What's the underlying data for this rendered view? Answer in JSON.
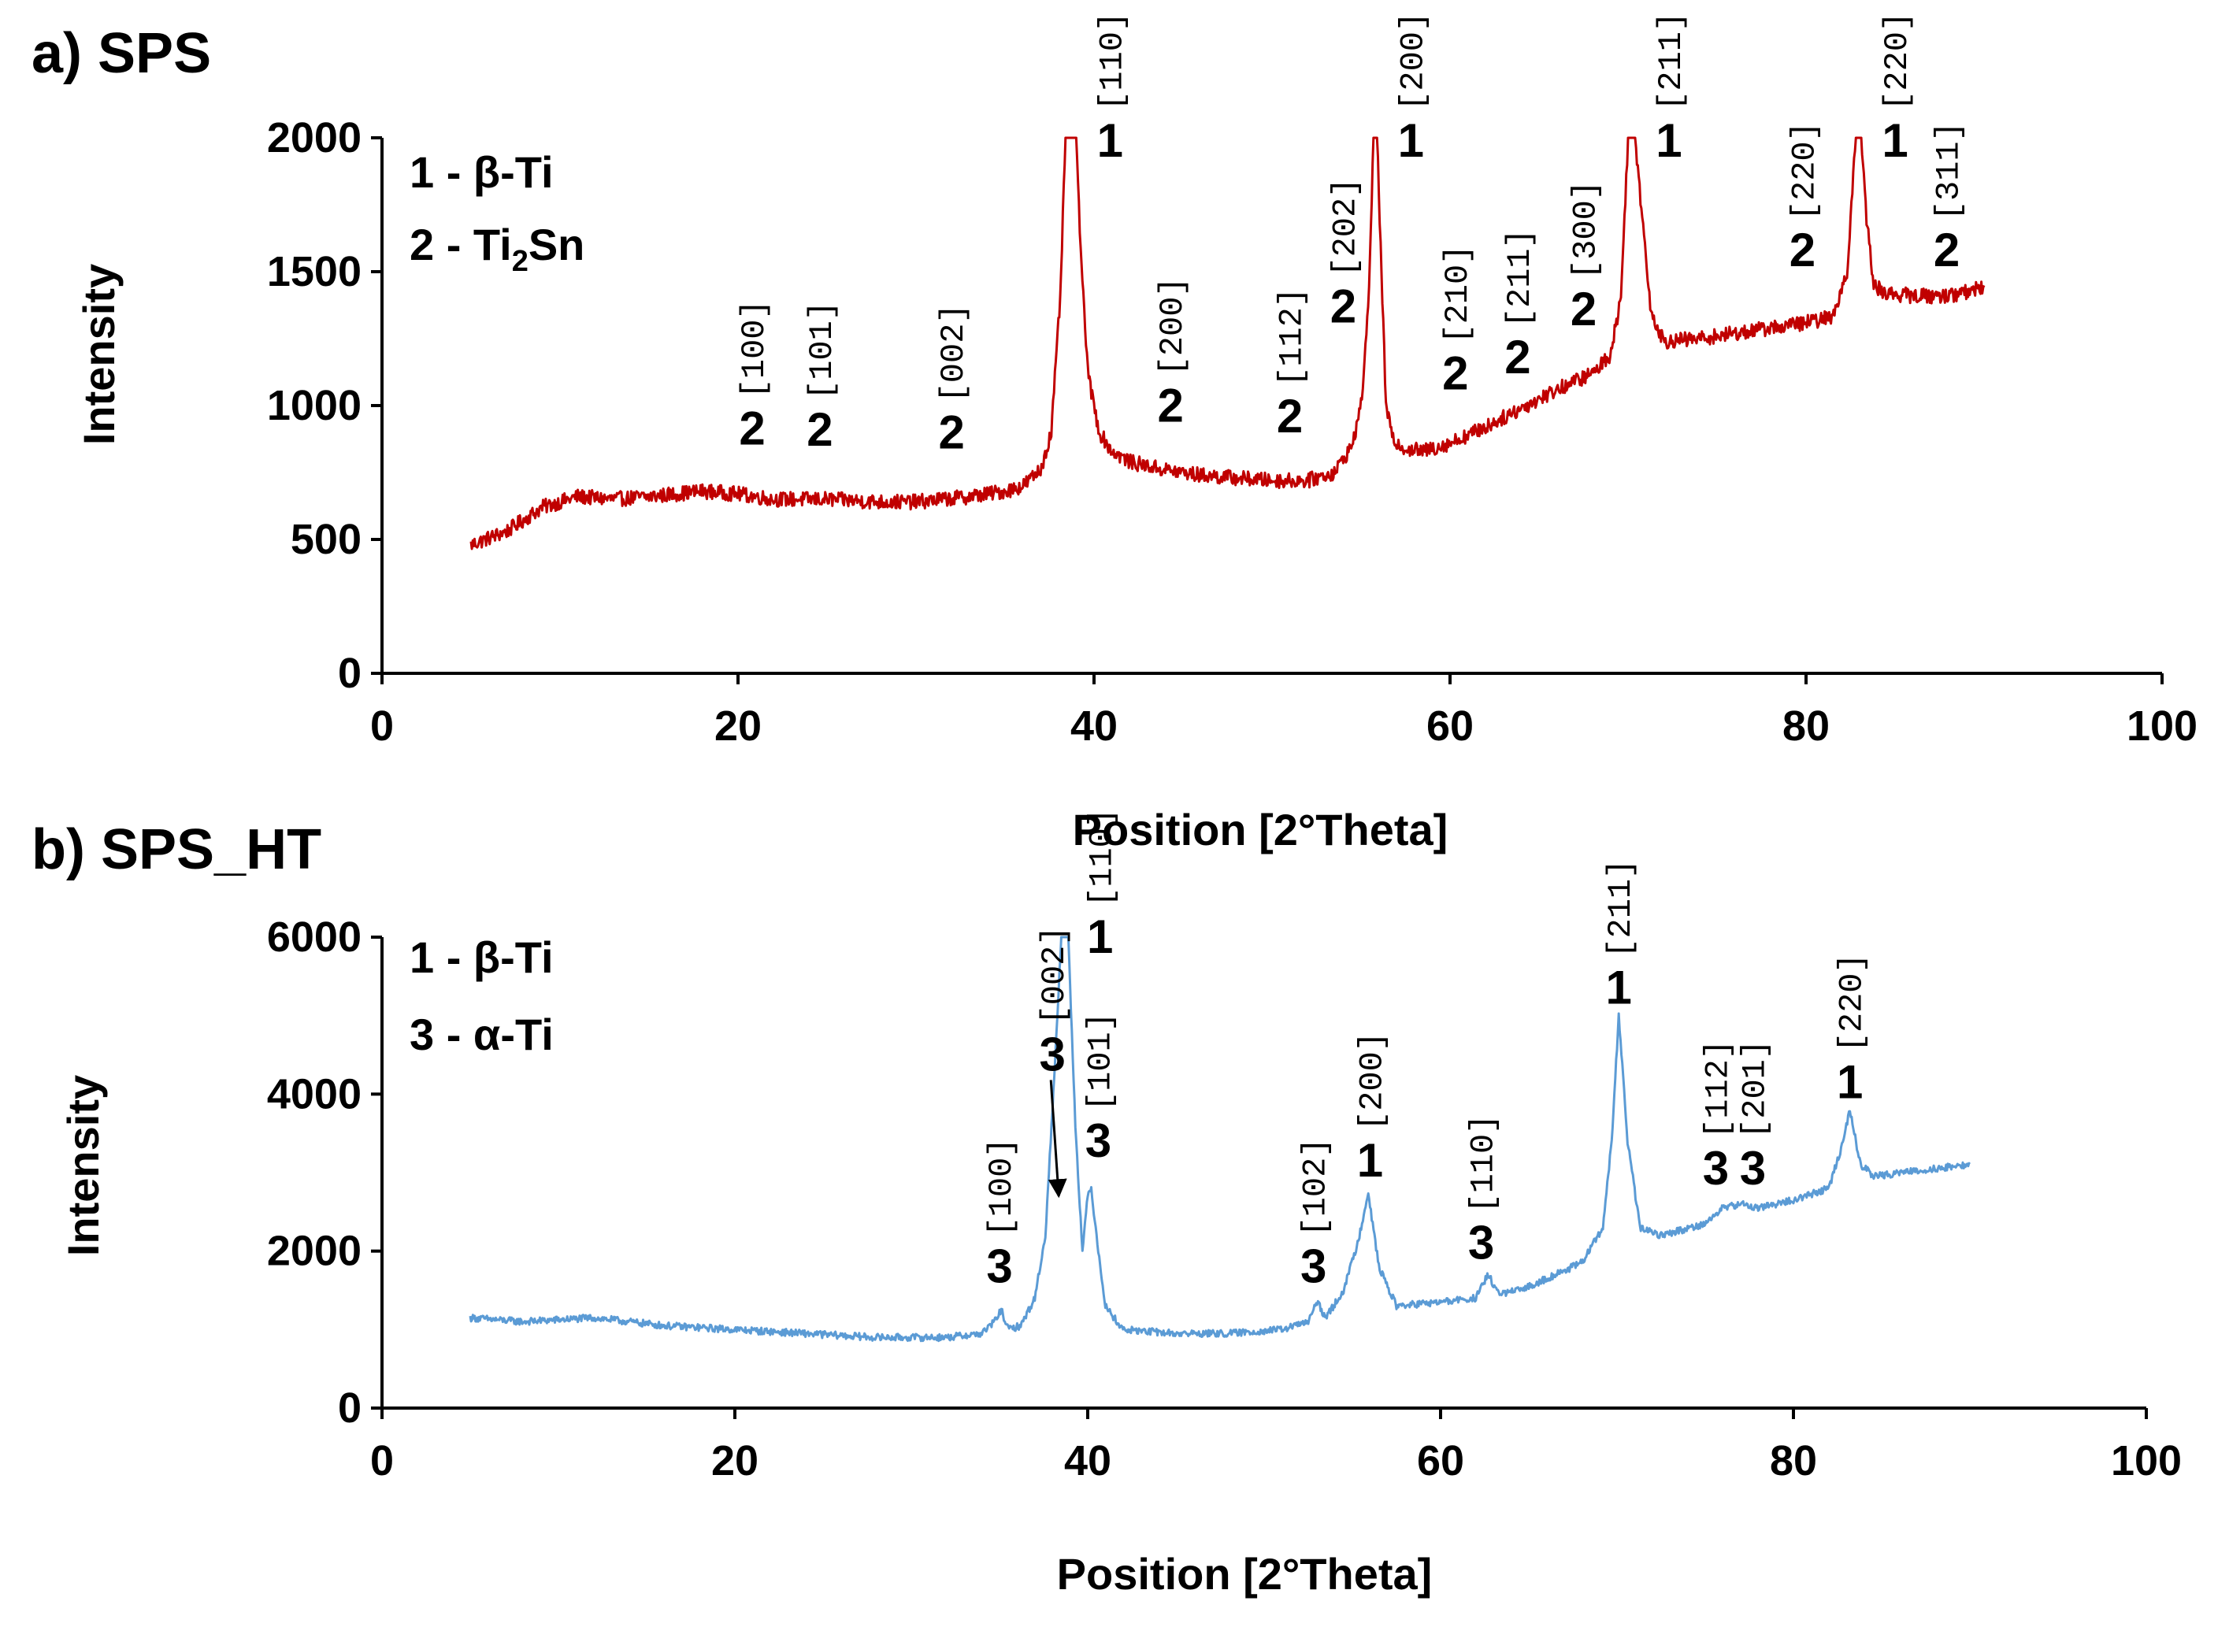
{
  "chart_data": [
    {
      "type": "line",
      "panel_label": "a) SPS",
      "xlabel": "Position  [2°Theta]",
      "ylabel": "Intensity",
      "xlim": [
        0,
        100
      ],
      "ylim": [
        0,
        2000
      ],
      "xticks": [
        0,
        20,
        40,
        60,
        80,
        100
      ],
      "yticks": [
        0,
        500,
        1000,
        1500,
        2000
      ],
      "color": "#c00000",
      "legend": [
        {
          "num": "1",
          "text": " - β-Ti"
        },
        {
          "num": "2",
          "text": " - Ti",
          "sub": "2",
          "after": "Sn"
        }
      ],
      "series": [
        {
          "name": "SPS",
          "x": [
            5,
            7,
            9,
            11,
            13,
            15,
            18,
            20,
            22,
            25,
            28,
            30,
            33,
            35,
            36,
            37,
            37.6,
            38.1,
            38.4,
            38.7,
            39.0,
            39.3,
            39.7,
            40.3,
            41,
            42,
            44,
            46,
            48,
            50,
            52,
            53.5,
            54.5,
            55.0,
            55.4,
            55.7,
            55.9,
            56.1,
            56.4,
            56.8,
            57.5,
            58.5,
            60,
            62,
            64,
            66,
            68,
            69.0,
            69.6,
            70.0,
            70.4,
            70.8,
            71.3,
            72,
            74,
            76,
            78,
            80,
            81.5,
            82.3,
            82.8,
            83.1,
            83.4,
            83.8,
            84.5,
            86,
            88,
            90
          ],
          "y": [
            480,
            530,
            620,
            660,
            650,
            660,
            680,
            670,
            650,
            650,
            640,
            640,
            660,
            680,
            700,
            760,
            900,
            1400,
            2000,
            2000,
            2000,
            1500,
            1100,
            900,
            830,
            790,
            760,
            740,
            730,
            720,
            720,
            750,
            850,
            1000,
            1350,
            2000,
            2000,
            1600,
            1000,
            870,
            840,
            830,
            860,
            920,
            990,
            1060,
            1120,
            1190,
            1400,
            2000,
            2000,
            1700,
            1350,
            1240,
            1250,
            1270,
            1290,
            1310,
            1330,
            1500,
            2000,
            2000,
            1700,
            1450,
            1420,
            1410,
            1410,
            1440
          ],
          "noise_amplitude": 28
        }
      ],
      "peak_labels": [
        {
          "x": 20.8,
          "y": 855,
          "phase": "2",
          "hkl": "[100]"
        },
        {
          "x": 24.6,
          "y": 850,
          "phase": "2",
          "hkl": "[101]"
        },
        {
          "x": 32.0,
          "y": 840,
          "phase": "2",
          "hkl": "[002]"
        },
        {
          "x": 40.9,
          "y": 1930,
          "phase": "1",
          "hkl": "[110]"
        },
        {
          "x": 44.3,
          "y": 940,
          "phase": "2",
          "hkl": "[200]"
        },
        {
          "x": 51.0,
          "y": 900,
          "phase": "2",
          "hkl": "[112]"
        },
        {
          "x": 54.0,
          "y": 1310,
          "phase": "2",
          "hkl": "[202]"
        },
        {
          "x": 57.8,
          "y": 1930,
          "phase": "1",
          "hkl": "[200]"
        },
        {
          "x": 60.3,
          "y": 1060,
          "phase": "2",
          "hkl": "[210]"
        },
        {
          "x": 63.8,
          "y": 1120,
          "phase": "2",
          "hkl": "[211]"
        },
        {
          "x": 67.5,
          "y": 1300,
          "phase": "2",
          "hkl": "[300]"
        },
        {
          "x": 72.3,
          "y": 1930,
          "phase": "1",
          "hkl": "[211]"
        },
        {
          "x": 79.8,
          "y": 1520,
          "phase": "2",
          "hkl": "[220]"
        },
        {
          "x": 85.0,
          "y": 1930,
          "phase": "1",
          "hkl": "[220]"
        },
        {
          "x": 87.9,
          "y": 1520,
          "phase": "2",
          "hkl": "[311]"
        }
      ]
    },
    {
      "type": "line",
      "panel_label": "b) SPS_HT",
      "xlabel": "Position  [2°Theta]",
      "ylabel": "Intensity",
      "xlim": [
        0,
        100
      ],
      "ylim": [
        0,
        6000
      ],
      "xticks": [
        0,
        20,
        40,
        60,
        80,
        100
      ],
      "yticks": [
        0,
        2000,
        4000,
        6000
      ],
      "color": "#5b9bd5",
      "legend": [
        {
          "num": "1",
          "text": " - β-Ti"
        },
        {
          "num": "3",
          "text": " - α-Ti"
        }
      ],
      "series": [
        {
          "name": "SPS_HT",
          "x": [
            5,
            8,
            12,
            16,
            20,
            24,
            28,
            32,
            34,
            34.7,
            35.1,
            35.5,
            36.2,
            37,
            37.6,
            38.1,
            38.5,
            38.9,
            39.3,
            39.7,
            40.0,
            40.2,
            40.5,
            41,
            42,
            45,
            48,
            51,
            52.5,
            53.0,
            53.5,
            54.5,
            55.3,
            55.9,
            56.5,
            57.5,
            60,
            62,
            62.7,
            63.3,
            64.5,
            66,
            68,
            69.2,
            69.7,
            70.1,
            70.6,
            71.3,
            72.5,
            75,
            76,
            77,
            78,
            80,
            82,
            82.7,
            83.2,
            83.8,
            84.6,
            86,
            88,
            90
          ],
          "y": [
            1150,
            1100,
            1150,
            1050,
            1000,
            950,
            900,
            900,
            950,
            1100,
            1250,
            1000,
            1050,
            1400,
            2200,
            4200,
            6000,
            6000,
            3600,
            2000,
            2700,
            2800,
            2200,
            1300,
            1000,
            950,
            950,
            1000,
            1100,
            1350,
            1150,
            1500,
            2100,
            2750,
            1800,
            1300,
            1350,
            1400,
            1700,
            1450,
            1500,
            1650,
            1850,
            2300,
            3400,
            5000,
            3400,
            2300,
            2200,
            2350,
            2550,
            2600,
            2550,
            2650,
            2800,
            3300,
            3800,
            3100,
            2950,
            3000,
            3050,
            3100
          ],
          "noise_amplitude": 45
        }
      ],
      "peak_labels": [
        {
          "x": 35.0,
          "y": 1600,
          "phase": "3",
          "hkl": "[100]"
        },
        {
          "x": 38.0,
          "y": 4300,
          "phase": "3",
          "hkl": "[002]",
          "arrow_to": [
            38.0,
            2700
          ]
        },
        {
          "x": 40.7,
          "y": 5800,
          "phase": "1",
          "hkl": "[110]"
        },
        {
          "x": 40.6,
          "y": 3200,
          "phase": "3",
          "hkl": "[101]"
        },
        {
          "x": 52.8,
          "y": 1600,
          "phase": "3",
          "hkl": "[102]"
        },
        {
          "x": 56.0,
          "y": 2950,
          "phase": "1",
          "hkl": "[200]"
        },
        {
          "x": 62.3,
          "y": 1900,
          "phase": "3",
          "hkl": "[110]"
        },
        {
          "x": 70.1,
          "y": 5150,
          "phase": "1",
          "hkl": "[211]"
        },
        {
          "x": 75.6,
          "y": 2850,
          "phase": "3",
          "hkl": "[112]"
        },
        {
          "x": 77.7,
          "y": 2850,
          "phase": "3",
          "hkl": "[201]"
        },
        {
          "x": 83.2,
          "y": 3950,
          "phase": "1",
          "hkl": "[220]"
        }
      ]
    }
  ]
}
